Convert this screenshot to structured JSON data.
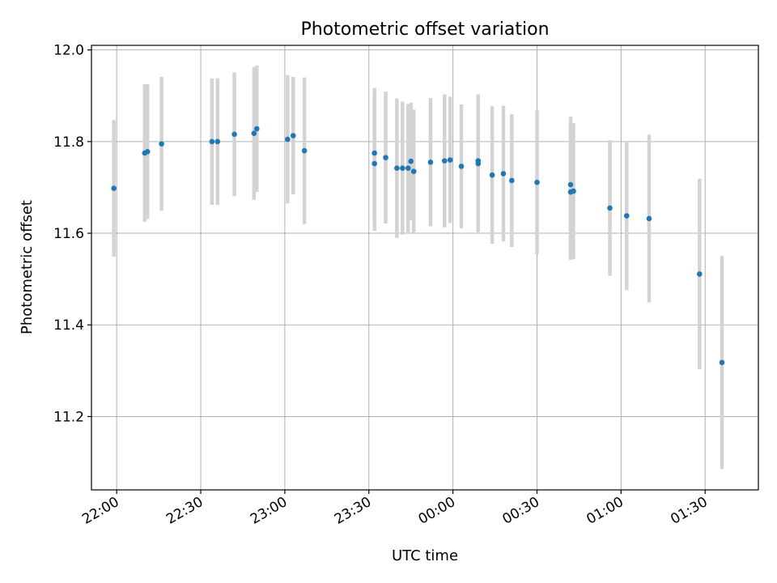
{
  "chart_data": {
    "type": "scatter",
    "title": "Photometric offset variation",
    "xlabel": "UTC time",
    "ylabel": "Photometric offset",
    "grid": true,
    "xlim": [
      "21:51",
      "01:49"
    ],
    "ylim": [
      11.04,
      12.01
    ],
    "x_ticks": [
      "22:00",
      "22:30",
      "23:00",
      "23:30",
      "00:00",
      "00:30",
      "01:00",
      "01:30"
    ],
    "y_ticks": [
      "11.2",
      "11.4",
      "11.6",
      "11.8",
      "12.0"
    ],
    "marker_color": "#1f77b4",
    "errorbar_color": "#d3d3d3",
    "points": [
      {
        "t": "21:59",
        "y": 11.698,
        "err": 0.149
      },
      {
        "t": "22:10",
        "y": 11.775,
        "err": 0.15
      },
      {
        "t": "22:11",
        "y": 11.778,
        "err": 0.147
      },
      {
        "t": "22:16",
        "y": 11.795,
        "err": 0.146
      },
      {
        "t": "22:34",
        "y": 11.8,
        "err": 0.138
      },
      {
        "t": "22:36",
        "y": 11.8,
        "err": 0.138
      },
      {
        "t": "22:42",
        "y": 11.816,
        "err": 0.135
      },
      {
        "t": "22:49",
        "y": 11.818,
        "err": 0.145
      },
      {
        "t": "22:50",
        "y": 11.828,
        "err": 0.138
      },
      {
        "t": "23:01",
        "y": 11.805,
        "err": 0.14
      },
      {
        "t": "23:03",
        "y": 11.813,
        "err": 0.128
      },
      {
        "t": "23:07",
        "y": 11.78,
        "err": 0.16
      },
      {
        "t": "23:32",
        "y": 11.775,
        "err": 0.142
      },
      {
        "t": "23:32",
        "y": 11.752,
        "err": 0.147
      },
      {
        "t": "23:36",
        "y": 11.765,
        "err": 0.144
      },
      {
        "t": "23:40",
        "y": 11.742,
        "err": 0.152
      },
      {
        "t": "23:42",
        "y": 11.742,
        "err": 0.145
      },
      {
        "t": "23:44",
        "y": 11.742,
        "err": 0.14
      },
      {
        "t": "23:45",
        "y": 11.757,
        "err": 0.128
      },
      {
        "t": "23:46",
        "y": 11.735,
        "err": 0.135
      },
      {
        "t": "23:52",
        "y": 11.755,
        "err": 0.14
      },
      {
        "t": "23:57",
        "y": 11.758,
        "err": 0.145
      },
      {
        "t": "23:59",
        "y": 11.76,
        "err": 0.138
      },
      {
        "t": "00:03",
        "y": 11.746,
        "err": 0.135
      },
      {
        "t": "00:09",
        "y": 11.752,
        "err": 0.15
      },
      {
        "t": "00:09",
        "y": 11.758,
        "err": 0.145
      },
      {
        "t": "00:14",
        "y": 11.727,
        "err": 0.15
      },
      {
        "t": "00:18",
        "y": 11.73,
        "err": 0.148
      },
      {
        "t": "00:21",
        "y": 11.715,
        "err": 0.145
      },
      {
        "t": "00:30",
        "y": 11.711,
        "err": 0.157
      },
      {
        "t": "00:42",
        "y": 11.69,
        "err": 0.148
      },
      {
        "t": "00:42",
        "y": 11.706,
        "err": 0.148
      },
      {
        "t": "00:43",
        "y": 11.692,
        "err": 0.148
      },
      {
        "t": "00:56",
        "y": 11.655,
        "err": 0.148
      },
      {
        "t": "01:02",
        "y": 11.638,
        "err": 0.162
      },
      {
        "t": "01:10",
        "y": 11.632,
        "err": 0.183
      },
      {
        "t": "01:28",
        "y": 11.511,
        "err": 0.208
      },
      {
        "t": "01:36",
        "y": 11.318,
        "err": 0.233
      }
    ]
  }
}
